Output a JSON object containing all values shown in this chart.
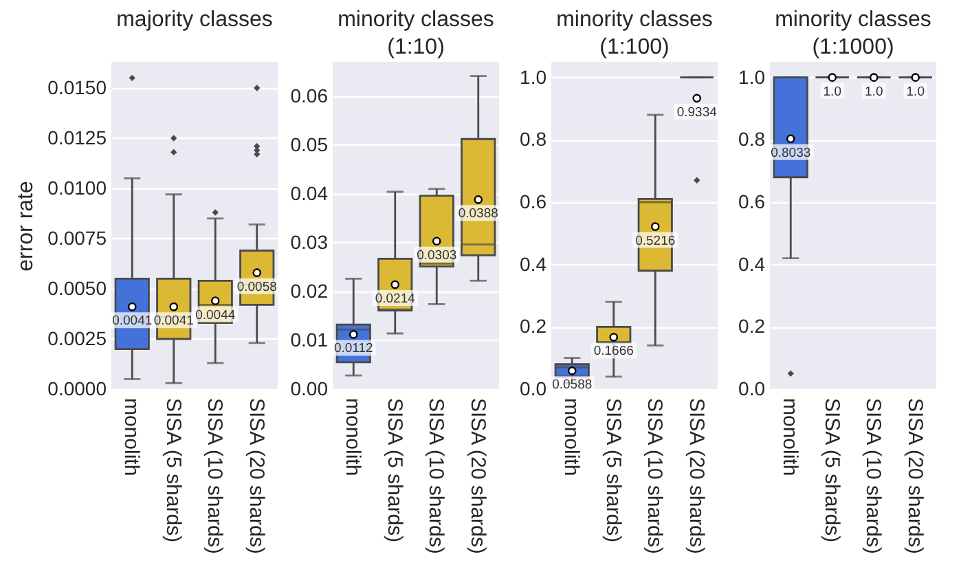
{
  "chart_data": [
    {
      "type": "box",
      "title": "majority classes",
      "ylabel": "error rate",
      "categories": [
        "monolith",
        "SISA (5 shards)",
        "SISA (10 shards)",
        "SISA (20 shards)"
      ],
      "colors": [
        "#4472d8",
        "#dcb935",
        "#dcb935",
        "#dcb935"
      ],
      "boxes": [
        {
          "low": 0.0005,
          "q1": 0.002,
          "median": 0.0035,
          "q3": 0.0055,
          "high": 0.0105,
          "mean": 0.0041,
          "outliers": [
            0.0155
          ]
        },
        {
          "low": 0.0003,
          "q1": 0.0025,
          "median": 0.0036,
          "q3": 0.0055,
          "high": 0.0097,
          "mean": 0.0041,
          "outliers": [
            0.0125,
            0.0118
          ]
        },
        {
          "low": 0.0013,
          "q1": 0.0033,
          "median": 0.0042,
          "q3": 0.0054,
          "high": 0.0085,
          "mean": 0.0044,
          "outliers": [
            0.0088
          ]
        },
        {
          "low": 0.0023,
          "q1": 0.0042,
          "median": 0.0052,
          "q3": 0.0069,
          "high": 0.0082,
          "mean": 0.0058,
          "outliers": [
            0.015,
            0.0121,
            0.0119,
            0.0117
          ]
        }
      ],
      "value_labels": [
        "0.0041",
        "0.0041",
        "0.0044",
        "0.0058"
      ],
      "ylim": [
        0,
        0.0163
      ],
      "yticks": [
        {
          "value": 0,
          "label": "0.0000"
        },
        0.0025,
        {
          "value": 0.005,
          "label": "0.0050"
        },
        0.0075,
        {
          "value": 0.01,
          "label": "0.0100"
        },
        0.0125,
        {
          "value": 0.015,
          "label": "0.0150"
        }
      ],
      "grid": "y",
      "marker": "diamond"
    },
    {
      "type": "box",
      "title": "minority classes\n(1:10)",
      "categories": [
        "monolith",
        "SISA (5 shards)",
        "SISA (10 shards)",
        "SISA (20 shards)"
      ],
      "colors": [
        "#4472d8",
        "#dcb935",
        "#dcb935",
        "#dcb935"
      ],
      "boxes": [
        {
          "low": 0.0028,
          "q1": 0.0055,
          "median": 0.0122,
          "q3": 0.0132,
          "high": 0.0226,
          "mean": 0.0112
        },
        {
          "low": 0.0114,
          "q1": 0.0161,
          "median": 0.0163,
          "q3": 0.0267,
          "high": 0.0404,
          "mean": 0.0214
        },
        {
          "low": 0.0174,
          "q1": 0.0251,
          "median": 0.0257,
          "q3": 0.0396,
          "high": 0.041,
          "mean": 0.0303
        },
        {
          "low": 0.0222,
          "q1": 0.0274,
          "median": 0.0296,
          "q3": 0.0512,
          "high": 0.0641,
          "mean": 0.0388
        }
      ],
      "value_labels": [
        "0.0112",
        "0.0214",
        "0.0303",
        "0.0388"
      ],
      "ylim": [
        0,
        0.067
      ],
      "yticks": [
        {
          "value": 0,
          "label": "0.00"
        },
        0.01,
        0.02,
        0.03,
        0.04,
        0.05,
        0.06
      ],
      "grid": "y",
      "marker": "diamond"
    },
    {
      "type": "box",
      "title": "minority classes\n(1:100)",
      "categories": [
        "monolith",
        "SISA (5 shards)",
        "SISA (10 shards)",
        "SISA (20 shards)"
      ],
      "colors": [
        "#4472d8",
        "#dcb935",
        "#dcb935",
        "#4a4a4a"
      ],
      "boxes": [
        {
          "low": 0.02,
          "q1": 0.04,
          "median": 0.07,
          "q3": 0.08,
          "high": 0.1,
          "mean": 0.0588
        },
        {
          "low": 0.04,
          "q1": 0.15,
          "median": 0.15,
          "q3": 0.2,
          "high": 0.28,
          "mean": 0.1666
        },
        {
          "low": 0.14,
          "q1": 0.38,
          "median": 0.6,
          "q3": 0.61,
          "high": 0.88,
          "mean": 0.5216
        },
        {
          "low": 1,
          "q1": 1,
          "median": 1,
          "q3": 1,
          "high": 1,
          "mean": 0.9334,
          "outliers": [
            0.67
          ]
        }
      ],
      "value_labels": [
        "0.0588",
        "0.1666",
        "0.5216",
        "0.9334"
      ],
      "ylim": [
        0,
        1.05
      ],
      "yticks": [
        {
          "value": 0,
          "label": "0.0"
        },
        0.2,
        0.4,
        0.6,
        0.8,
        {
          "value": 1,
          "label": "1.0"
        }
      ],
      "grid": "y",
      "marker": "diamond"
    },
    {
      "type": "box",
      "title": "minority classes\n(1:1000)",
      "categories": [
        "monolith",
        "SISA (5 shards)",
        "SISA (10 shards)",
        "SISA (20 shards)"
      ],
      "colors": [
        "#4472d8",
        "#4a4a4a",
        "#4a4a4a",
        "#4a4a4a"
      ],
      "boxes": [
        {
          "low": 0.42,
          "q1": 0.68,
          "median": 1,
          "q3": 1,
          "high": 1,
          "mean": 0.8033,
          "outliers": [
            0.05
          ]
        },
        {
          "low": 1,
          "q1": 1,
          "median": 1,
          "q3": 1,
          "high": 1,
          "mean": 1
        },
        {
          "low": 1,
          "q1": 1,
          "median": 1,
          "q3": 1,
          "high": 1,
          "mean": 1
        },
        {
          "low": 1,
          "q1": 1,
          "median": 1,
          "q3": 1,
          "high": 1,
          "mean": 1
        }
      ],
      "value_labels": [
        "0.8033",
        "1.0",
        "1.0",
        "1.0"
      ],
      "ylim": [
        0,
        1.05
      ],
      "yticks": [
        {
          "value": 0,
          "label": "0.0"
        },
        0.2,
        0.4,
        0.6,
        0.8,
        {
          "value": 1,
          "label": "1.0"
        }
      ],
      "grid": "y",
      "marker": "diamond"
    }
  ]
}
